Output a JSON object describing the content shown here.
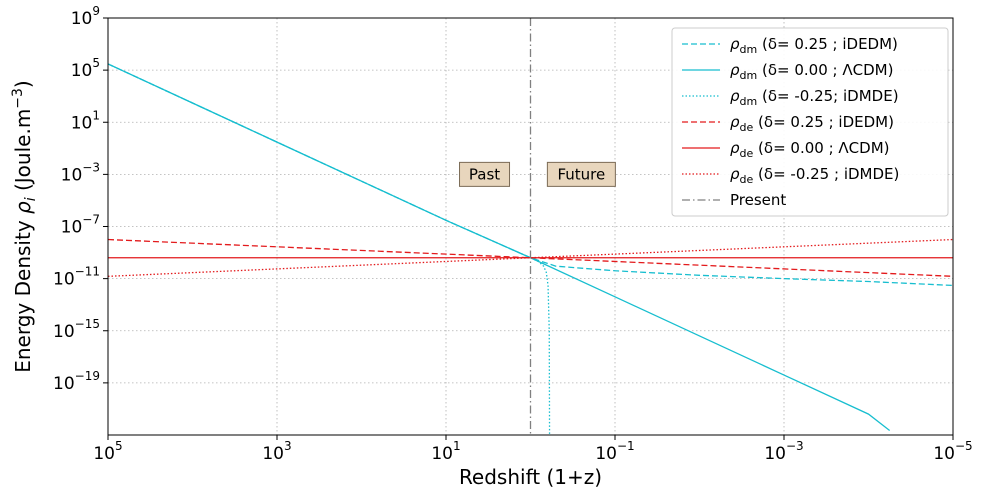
{
  "chart_data": {
    "type": "line",
    "title": "",
    "xlabel": "Redshift (1+z)",
    "ylabel_prefix": "Energy Density ",
    "ylabel_symbol": "ρ",
    "ylabel_sub": "i",
    "ylabel_unit": " (Joule.m",
    "ylabel_unit_sup": "−3",
    "ylabel_unit_close": ")",
    "x_scale": "log",
    "y_scale": "log",
    "x_reversed": true,
    "xlim": [
      100000,
      1e-05
    ],
    "ylim": [
      1e-23,
      1000000000.0
    ],
    "grid": true,
    "legend_position": "top-right",
    "x_ticks": [
      {
        "value": 100000,
        "base": "10",
        "exp": "5"
      },
      {
        "value": 1000,
        "base": "10",
        "exp": "3"
      },
      {
        "value": 10,
        "base": "10",
        "exp": "1"
      },
      {
        "value": 0.1,
        "base": "10",
        "exp": "−1"
      },
      {
        "value": 0.001,
        "base": "10",
        "exp": "−3"
      },
      {
        "value": 1e-05,
        "base": "10",
        "exp": "−5"
      }
    ],
    "y_ticks": [
      {
        "value": 1000000000.0,
        "base": "10",
        "exp": "9"
      },
      {
        "value": 100000.0,
        "base": "10",
        "exp": "5"
      },
      {
        "value": 10,
        "base": "10",
        "exp": "1"
      },
      {
        "value": 0.001,
        "base": "10",
        "exp": "−3"
      },
      {
        "value": 1e-07,
        "base": "10",
        "exp": "−7"
      },
      {
        "value": 1e-11,
        "base": "10",
        "exp": "−11"
      },
      {
        "value": 1e-15,
        "base": "10",
        "exp": "−15"
      },
      {
        "value": 1e-19,
        "base": "10",
        "exp": "−19"
      }
    ],
    "series": [
      {
        "symbol": "ρ",
        "sub": "dm",
        "label": " (δ= 0.25  ; iDEDM)",
        "color": "#17becf",
        "dash": "dashed",
        "x": [
          100000,
          10000,
          1000,
          100,
          10,
          1,
          0.5,
          0.1,
          0.01,
          0.001,
          0.0001,
          1e-05
        ],
        "y": [
          300000.0,
          300.0,
          0.3,
          0.0003,
          3e-07,
          4e-10,
          9e-11,
          4e-11,
          1.8e-11,
          1e-11,
          6e-12,
          3e-12
        ]
      },
      {
        "symbol": "ρ",
        "sub": "dm",
        "label": " (δ= 0.00  ; ΛCDM)",
        "color": "#17becf",
        "dash": "solid",
        "x": [
          100000,
          10000,
          1000,
          100,
          10,
          1,
          0.1,
          0.01,
          0.001,
          0.0001,
          5.62e-05
        ],
        "y": [
          300000.0,
          300.0,
          0.3,
          0.0003,
          3e-07,
          4e-10,
          4e-13,
          4e-16,
          4e-19,
          4e-22,
          2.2e-23
        ]
      },
      {
        "symbol": "ρ",
        "sub": "dm",
        "label": " (δ= -0.25; iDMDE)",
        "color": "#17becf",
        "dash": "dotted",
        "x": [
          100000,
          10000,
          1000,
          100,
          10,
          1,
          0.8,
          0.7,
          0.65,
          0.62,
          0.6,
          0.595
        ],
        "y": [
          300000.0,
          300.0,
          0.3,
          0.0003,
          3e-07,
          4e-10,
          2e-10,
          9e-11,
          3e-11,
          3e-12,
          1e-15,
          1e-23
        ]
      },
      {
        "symbol": "ρ",
        "sub": "de",
        "label": " (δ= 0.25  ; iDEDM)",
        "color": "#e31a1c",
        "dash": "dashed",
        "x": [
          100000,
          1,
          1e-05
        ],
        "y": [
          1e-08,
          4e-10,
          1.5e-11
        ]
      },
      {
        "symbol": "ρ",
        "sub": "de",
        "label": " (δ= 0.00  ; ΛCDM)",
        "color": "#e31a1c",
        "dash": "solid",
        "x": [
          100000,
          1e-05
        ],
        "y": [
          4e-10,
          4e-10
        ]
      },
      {
        "symbol": "ρ",
        "sub": "de",
        "label": " (δ= -0.25 ; iDMDE)",
        "color": "#e31a1c",
        "dash": "dotted",
        "x": [
          100000,
          1,
          1e-05
        ],
        "y": [
          1.5e-11,
          4e-10,
          1e-08
        ]
      }
    ],
    "present_line": {
      "x": 1,
      "label": "Present",
      "color": "#808080",
      "dash": "dashdot"
    },
    "annotations": [
      {
        "text": "Past",
        "x": 3.5,
        "y": 0.001
      },
      {
        "text": "Future",
        "x": 0.25,
        "y": 0.001
      }
    ]
  }
}
